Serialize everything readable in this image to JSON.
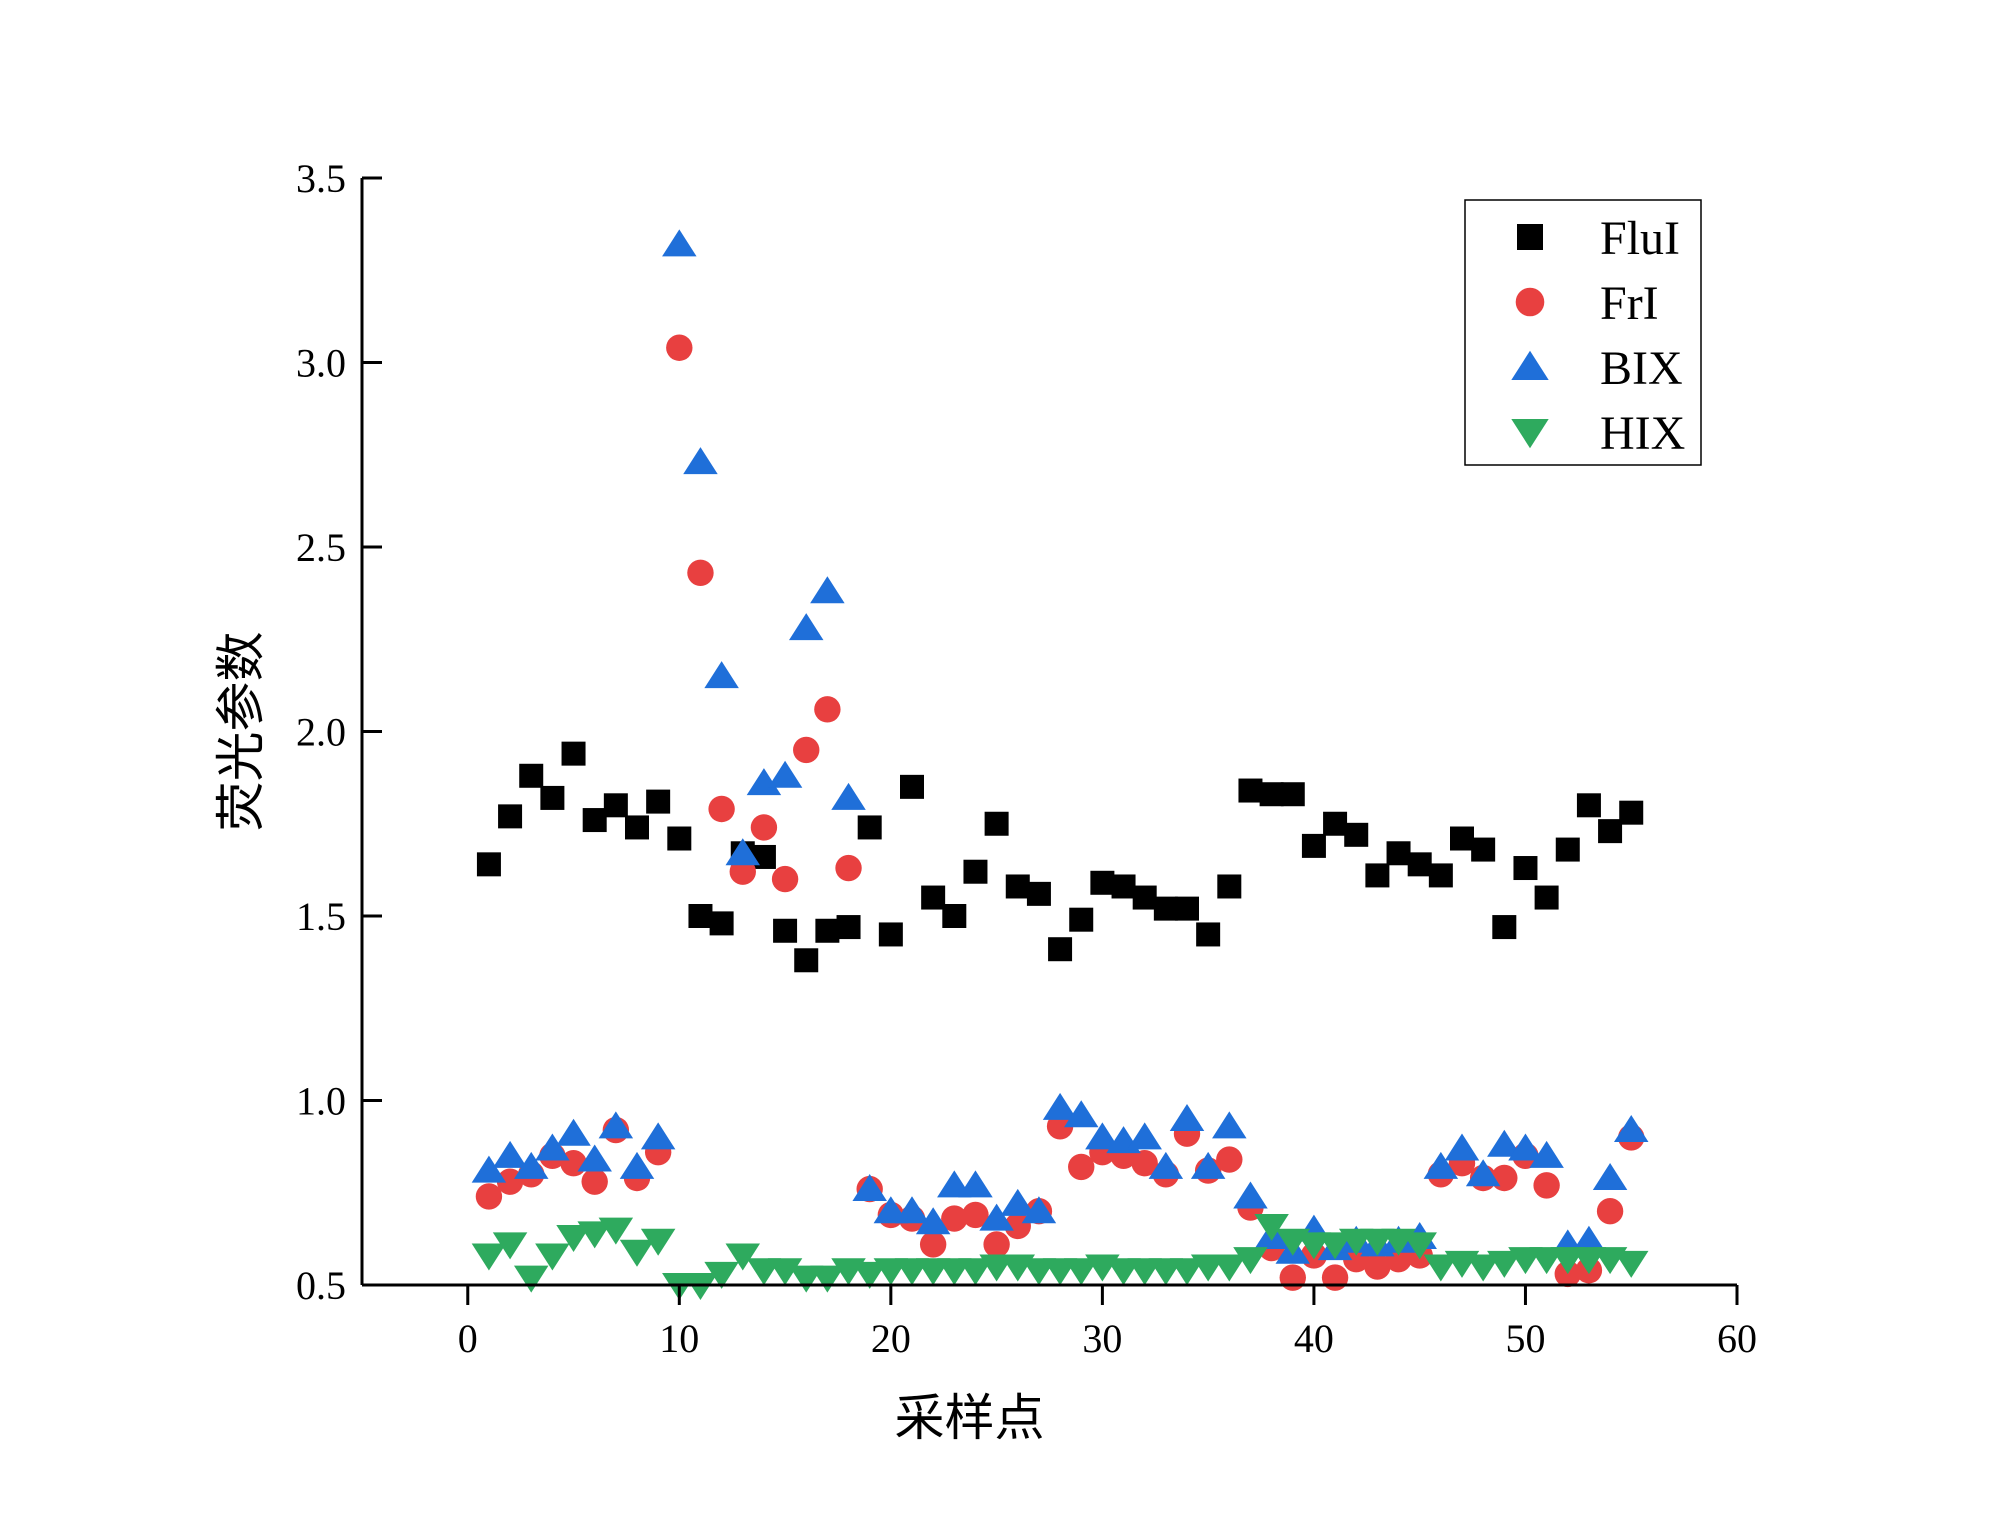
{
  "chart_data": {
    "type": "scatter",
    "title": "",
    "xlabel": "采样点",
    "ylabel": "荧光参数",
    "xlim": [
      -5,
      60
    ],
    "ylim": [
      0.5,
      3.5
    ],
    "xticks": [
      0,
      10,
      20,
      30,
      40,
      50,
      60
    ],
    "yticks": [
      0.5,
      1.0,
      1.5,
      2.0,
      2.5,
      3.0,
      3.5
    ],
    "xtick_labels": [
      "0",
      "10",
      "20",
      "30",
      "40",
      "50",
      "60"
    ],
    "ytick_labels": [
      "0.5",
      "1.0",
      "1.5",
      "2.0",
      "2.5",
      "3.0",
      "3.5"
    ],
    "grid": false,
    "legend_position": "top-right",
    "x": [
      1,
      2,
      3,
      4,
      5,
      6,
      7,
      8,
      9,
      10,
      11,
      12,
      13,
      14,
      15,
      16,
      17,
      18,
      19,
      20,
      21,
      22,
      23,
      24,
      25,
      26,
      27,
      28,
      29,
      30,
      31,
      32,
      33,
      34,
      35,
      36,
      37,
      38,
      39,
      40,
      41,
      42,
      43,
      44,
      45,
      46,
      47,
      48,
      49,
      50,
      51,
      52,
      53,
      54,
      55
    ],
    "series": [
      {
        "name": "FluI",
        "marker": "square",
        "color": "#000000",
        "values": [
          1.64,
          1.77,
          1.88,
          1.82,
          1.94,
          1.76,
          1.8,
          1.74,
          1.81,
          1.71,
          1.5,
          1.48,
          1.67,
          1.66,
          1.46,
          1.38,
          1.46,
          1.47,
          1.74,
          1.45,
          1.85,
          1.55,
          1.5,
          1.62,
          1.75,
          1.58,
          1.56,
          1.41,
          1.49,
          1.59,
          1.58,
          1.55,
          1.52,
          1.52,
          1.45,
          1.58,
          1.84,
          1.83,
          1.83,
          1.69,
          1.75,
          1.72,
          1.61,
          1.67,
          1.64,
          1.61,
          1.71,
          1.68,
          1.47,
          1.63,
          1.55,
          1.68,
          1.8,
          1.73,
          1.78
        ]
      },
      {
        "name": "FrI",
        "marker": "circle",
        "color": "#e84040",
        "values": [
          0.74,
          0.78,
          0.8,
          0.85,
          0.83,
          0.78,
          0.92,
          0.79,
          0.86,
          3.04,
          2.43,
          1.79,
          1.62,
          1.74,
          1.6,
          1.95,
          2.06,
          1.63,
          0.76,
          0.69,
          0.68,
          0.61,
          0.68,
          0.69,
          0.61,
          0.66,
          0.7,
          0.93,
          0.82,
          0.86,
          0.85,
          0.83,
          0.8,
          0.91,
          0.81,
          0.84,
          0.71,
          0.6,
          0.52,
          0.58,
          0.52,
          0.57,
          0.55,
          0.57,
          0.58,
          0.8,
          0.83,
          0.79,
          0.79,
          0.85,
          0.77,
          0.53,
          0.54,
          0.7,
          0.9
        ]
      },
      {
        "name": "BIX",
        "marker": "triangle-up",
        "color": "#1f6fd9",
        "values": [
          0.81,
          0.85,
          0.82,
          0.87,
          0.91,
          0.84,
          0.93,
          0.82,
          0.9,
          3.32,
          2.73,
          2.15,
          1.67,
          1.86,
          1.88,
          2.28,
          2.38,
          1.82,
          0.76,
          0.7,
          0.7,
          0.67,
          0.77,
          0.77,
          0.68,
          0.72,
          0.7,
          0.98,
          0.96,
          0.9,
          0.89,
          0.9,
          0.82,
          0.95,
          0.82,
          0.93,
          0.74,
          0.63,
          0.59,
          0.65,
          0.6,
          0.62,
          0.61,
          0.62,
          0.63,
          0.82,
          0.87,
          0.8,
          0.88,
          0.87,
          0.85,
          0.61,
          0.62,
          0.79,
          0.92
        ]
      },
      {
        "name": "HIX",
        "marker": "triangle-down",
        "color": "#2eaa5e",
        "values": [
          0.58,
          0.61,
          0.52,
          0.58,
          0.63,
          0.64,
          0.65,
          0.59,
          0.62,
          0.5,
          0.5,
          0.53,
          0.58,
          0.54,
          0.54,
          0.52,
          0.52,
          0.54,
          0.53,
          0.54,
          0.54,
          0.54,
          0.54,
          0.54,
          0.55,
          0.55,
          0.54,
          0.54,
          0.54,
          0.55,
          0.54,
          0.54,
          0.54,
          0.54,
          0.55,
          0.55,
          0.57,
          0.66,
          0.62,
          0.61,
          0.61,
          0.62,
          0.62,
          0.62,
          0.61,
          0.55,
          0.56,
          0.55,
          0.56,
          0.57,
          0.57,
          0.57,
          0.57,
          0.57,
          0.56
        ]
      }
    ]
  }
}
